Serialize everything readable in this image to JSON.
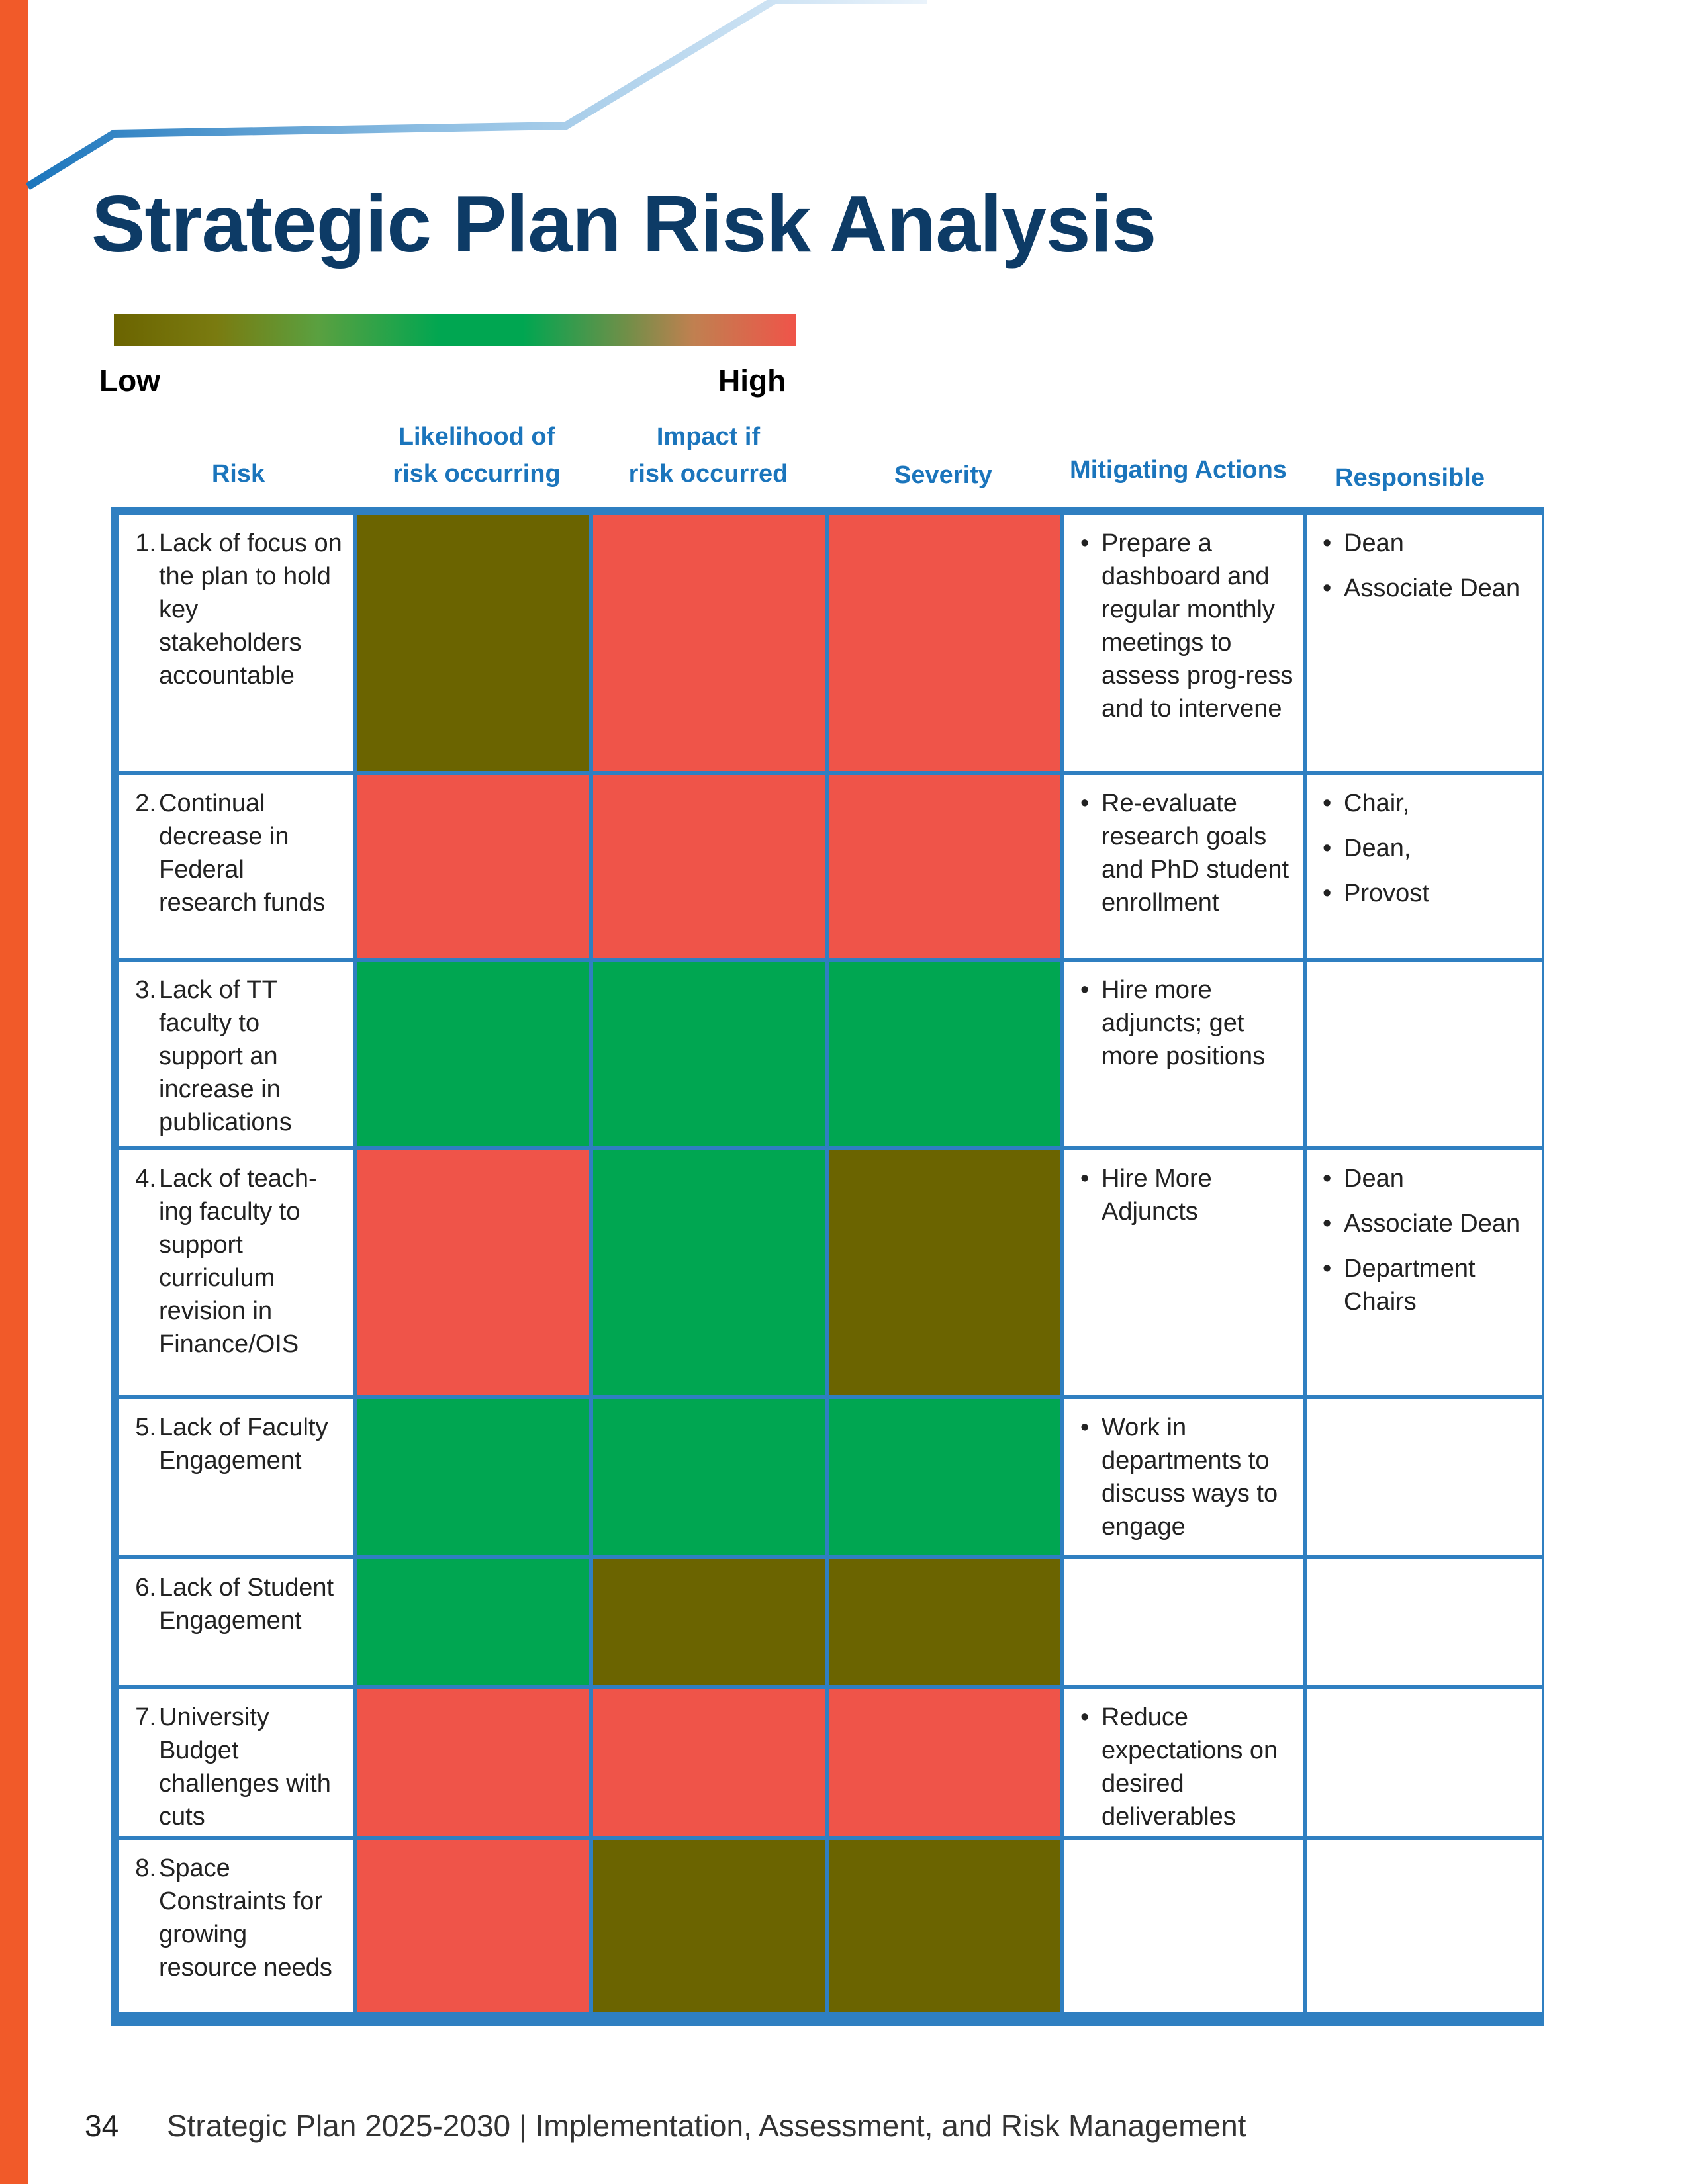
{
  "page": {
    "title": "Strategic Plan Risk Analysis",
    "scale": {
      "low_label": "Low",
      "high_label": "High"
    },
    "colors": {
      "low": "#6b6400",
      "mid": "#00a651",
      "high": "#ef5449",
      "accent_border": "#2f7fc1",
      "side_bar": "#f15a29",
      "title": "#0d3b66"
    }
  },
  "table": {
    "headers": {
      "risk": "Risk",
      "likelihood": [
        "Likelihood of",
        "risk occurring"
      ],
      "impact": [
        "Impact if",
        "risk occurred"
      ],
      "severity": "Severity",
      "mitigating": "Mitigating Actions",
      "responsible": "Responsible"
    },
    "rows": [
      {
        "num": "1.",
        "risk": "Lack of focus on the plan to hold key stakeholders accountable",
        "likelihood": "low",
        "impact": "high",
        "severity": "high",
        "actions": [
          "Prepare a dashboard and regular monthly meetings to assess prog-ress and to intervene"
        ],
        "responsible": [
          "Dean",
          "Associate Dean"
        ]
      },
      {
        "num": "2.",
        "risk": "Continual decrease in Federal research funds",
        "likelihood": "high",
        "impact": "high",
        "severity": "high",
        "actions": [
          "Re-evaluate research goals and PhD student enrollment"
        ],
        "responsible": [
          "Chair,",
          "Dean,",
          "Provost"
        ]
      },
      {
        "num": "3.",
        "risk": "Lack of TT faculty to support an increase in publications",
        "likelihood": "mid",
        "impact": "mid",
        "severity": "mid",
        "actions": [
          "Hire more adjuncts; get more positions"
        ],
        "responsible": []
      },
      {
        "num": "4.",
        "risk": "Lack of teach-ing faculty to support curriculum revision in Finance/OIS",
        "likelihood": "high",
        "impact": "mid",
        "severity": "low",
        "actions": [
          "Hire More Adjuncts"
        ],
        "responsible": [
          "Dean",
          "Associate Dean",
          "Department Chairs"
        ]
      },
      {
        "num": "5.",
        "risk": "Lack of Faculty Engagement",
        "likelihood": "mid",
        "impact": "mid",
        "severity": "mid",
        "actions": [
          "Work in departments to discuss ways to engage"
        ],
        "responsible": []
      },
      {
        "num": "6.",
        "risk": "Lack of Student Engagement",
        "likelihood": "mid",
        "impact": "low",
        "severity": "low",
        "actions": [],
        "responsible": []
      },
      {
        "num": "7.",
        "risk": "University Budget challenges with cuts",
        "likelihood": "high",
        "impact": "high",
        "severity": "high",
        "actions": [
          "Reduce expectations on desired deliverables"
        ],
        "responsible": []
      },
      {
        "num": "8.",
        "risk": "Space Constraints for growing resource needs",
        "likelihood": "high",
        "impact": "low",
        "severity": "low",
        "actions": [],
        "responsible": []
      }
    ]
  },
  "footer": {
    "page_number": "34",
    "text": "Strategic Plan 2025-2030 | Implementation, Assessment, and Risk Management"
  }
}
